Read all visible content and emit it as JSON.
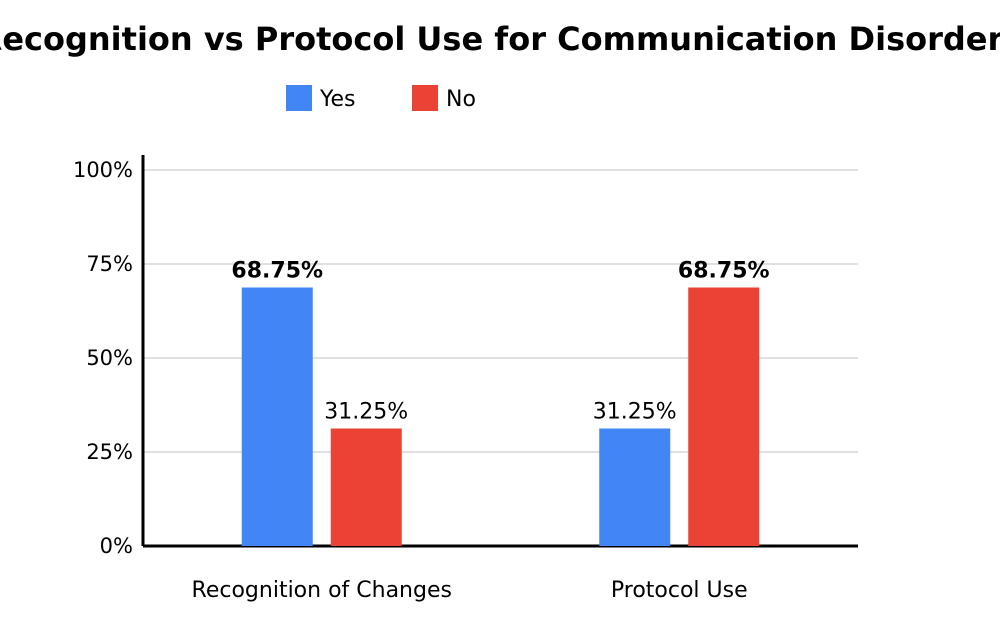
{
  "chart_data": {
    "type": "bar",
    "title": "Recognition vs Protocol Use for Communication Disorders",
    "categories": [
      "Recognition of Changes",
      "Protocol Use"
    ],
    "series": [
      {
        "name": "Yes",
        "color": "#4285f4",
        "values": [
          68.75,
          31.25
        ],
        "labels": [
          "68.75%",
          "31.25%"
        ]
      },
      {
        "name": "No",
        "color": "#ea4335",
        "values": [
          31.25,
          68.75
        ],
        "labels": [
          "31.25%",
          "68.75%"
        ]
      }
    ],
    "ylim": [
      0,
      100
    ],
    "yticks": [
      0,
      25,
      50,
      75,
      100
    ],
    "ytick_labels": [
      "0%",
      "25%",
      "50%",
      "75%",
      "100%"
    ],
    "grid": true,
    "legend_position": "top-left",
    "emphasized_labels": [
      {
        "series": 0,
        "category": 0
      },
      {
        "series": 1,
        "category": 1
      }
    ]
  }
}
